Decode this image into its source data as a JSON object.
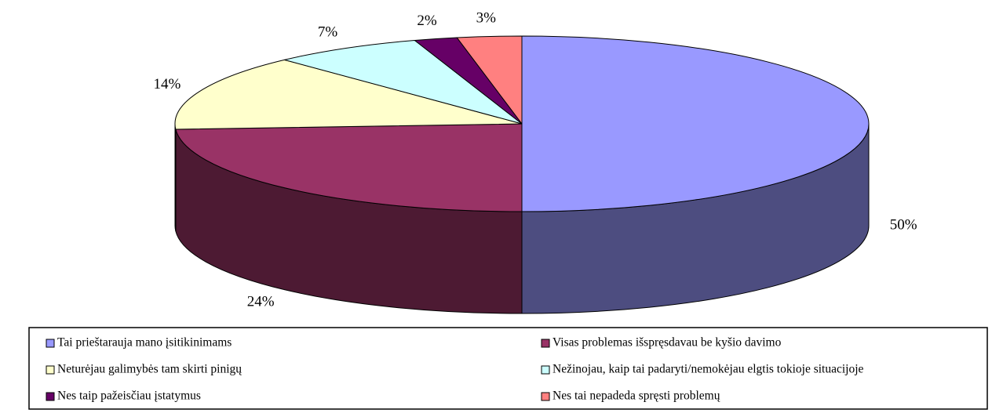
{
  "chart_data": {
    "type": "pie",
    "categories": [
      "Tai prieštarauja mano įsitikinimams",
      "Visas problemas išspręsdavau be kyšio davimo",
      "Neturėjau galimybės tam skirti pinigų",
      "Nežinojau, kaip tai padaryti/nemokėjau elgtis tokioje situacijoje",
      "Nes taip pažeisčiau įstatymus",
      "Nes tai nepadeda spręsti problemų"
    ],
    "values": [
      50,
      24,
      14,
      7,
      2,
      3
    ],
    "value_labels": [
      "50%",
      "24%",
      "14%",
      "7%",
      "2%",
      "3%"
    ],
    "colors": [
      "#9999ff",
      "#993366",
      "#ffffcc",
      "#ccffff",
      "#660066",
      "#ff8080"
    ],
    "legend": "bottom"
  }
}
